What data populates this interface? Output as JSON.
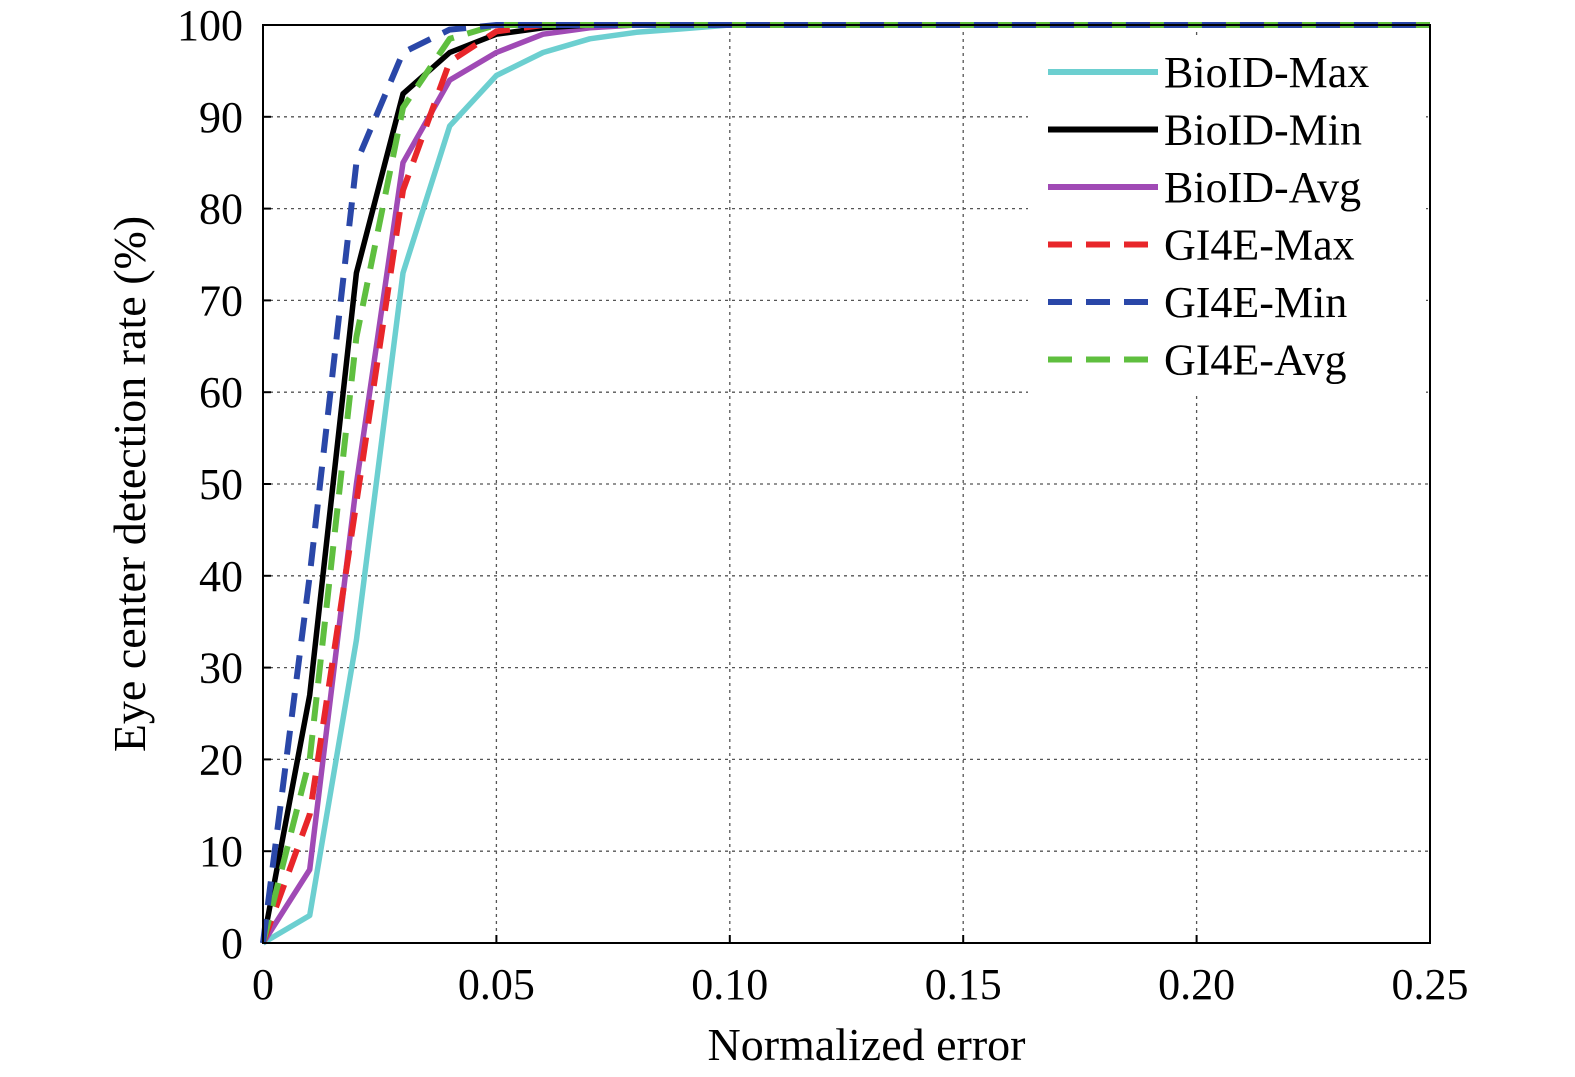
{
  "chart_data": {
    "type": "line",
    "title": "",
    "xlabel": "Normalized error",
    "ylabel": "Eye center detection rate (%)",
    "xlim": [
      0,
      0.25
    ],
    "ylim": [
      0,
      100
    ],
    "xticks": [
      0,
      0.05,
      0.1,
      0.15,
      0.2,
      0.25
    ],
    "xtick_labels": [
      "0",
      "0.05",
      "0.10",
      "0.15",
      "0.20",
      "0.25"
    ],
    "yticks": [
      0,
      10,
      20,
      30,
      40,
      50,
      60,
      70,
      80,
      90,
      100
    ],
    "ytick_labels": [
      "0",
      "10",
      "20",
      "30",
      "40",
      "50",
      "60",
      "70",
      "80",
      "90",
      "100"
    ],
    "grid": true,
    "legend_position": "top-right",
    "series": [
      {
        "name": "BioID-Max",
        "color": "#6ccfd0",
        "style": "solid",
        "x": [
          0,
          0.01,
          0.02,
          0.03,
          0.04,
          0.05,
          0.06,
          0.07,
          0.08,
          0.09,
          0.1,
          0.15,
          0.2,
          0.25
        ],
        "y": [
          0,
          3,
          33,
          73,
          89,
          94.5,
          97,
          98.5,
          99.2,
          99.6,
          100,
          100,
          100,
          100
        ]
      },
      {
        "name": "BioID-Min",
        "color": "#000000",
        "style": "solid",
        "x": [
          0,
          0.01,
          0.02,
          0.03,
          0.04,
          0.05,
          0.06,
          0.07,
          0.1,
          0.15,
          0.2,
          0.25
        ],
        "y": [
          0,
          27,
          73,
          92.5,
          97,
          99,
          99.7,
          100,
          100,
          100,
          100,
          100
        ]
      },
      {
        "name": "BioID-Avg",
        "color": "#a04ab5",
        "style": "solid",
        "x": [
          0,
          0.01,
          0.02,
          0.03,
          0.04,
          0.05,
          0.06,
          0.07,
          0.08,
          0.1,
          0.15,
          0.2,
          0.25
        ],
        "y": [
          0,
          8,
          50,
          85,
          94,
          97,
          99,
          99.7,
          100,
          100,
          100,
          100,
          100
        ]
      },
      {
        "name": "GI4E-Max",
        "color": "#e8262a",
        "style": "dashed",
        "x": [
          0,
          0.01,
          0.02,
          0.03,
          0.04,
          0.05,
          0.06,
          0.1,
          0.15,
          0.2,
          0.25
        ],
        "y": [
          0,
          14,
          48,
          82,
          96,
          99.3,
          100,
          100,
          100,
          100,
          100
        ]
      },
      {
        "name": "GI4E-Min",
        "color": "#2a47a8",
        "style": "dashed",
        "x": [
          0,
          0.01,
          0.02,
          0.03,
          0.04,
          0.05,
          0.1,
          0.15,
          0.2,
          0.25
        ],
        "y": [
          0,
          40,
          85,
          97,
          99.5,
          100,
          100,
          100,
          100,
          100
        ]
      },
      {
        "name": "GI4E-Avg",
        "color": "#5fbf3f",
        "style": "dashed",
        "x": [
          0,
          0.01,
          0.02,
          0.03,
          0.04,
          0.05,
          0.06,
          0.1,
          0.15,
          0.2,
          0.25
        ],
        "y": [
          0,
          20,
          66,
          91,
          98.5,
          100,
          100,
          100,
          100,
          100,
          100
        ]
      }
    ]
  }
}
